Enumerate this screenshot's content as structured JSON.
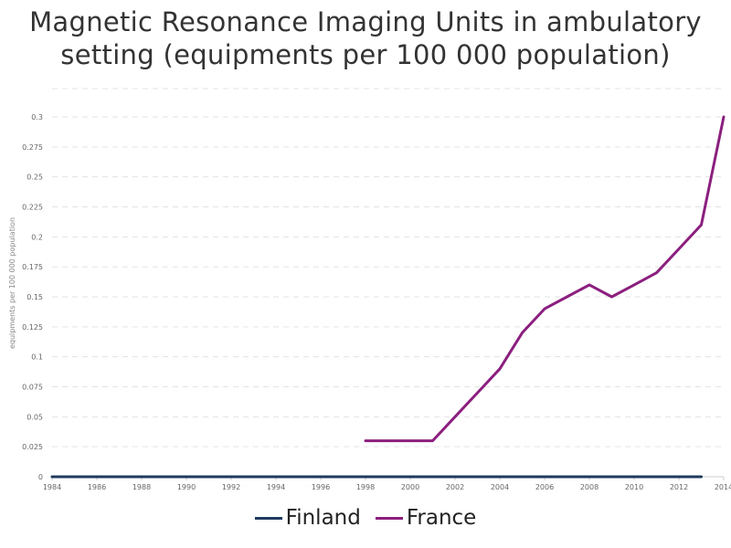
{
  "title_line1": "Magnetic Resonance Imaging Units in ambulatory",
  "title_line2": "setting (equipments per 100 000 population)",
  "chart_data": {
    "type": "line",
    "title": "Magnetic Resonance Imaging Units in ambulatory setting (equipments per 100 000 population)",
    "ylabel": "equipments per 100 000 population",
    "xlabel": "",
    "xlim": [
      1984,
      2014
    ],
    "ylim": [
      0,
      0.3
    ],
    "x_ticks": [
      1984,
      1986,
      1988,
      1990,
      1992,
      1994,
      1996,
      1998,
      2000,
      2002,
      2004,
      2006,
      2008,
      2010,
      2012,
      2014
    ],
    "y_ticks": [
      0,
      0.025,
      0.05,
      0.075,
      0.1,
      0.125,
      0.15,
      0.175,
      0.2,
      0.225,
      0.25,
      0.275,
      0.3
    ],
    "y_tick_labels": [
      "0",
      "0.025",
      "0.05",
      "0.075",
      "0.1",
      "0.125",
      "0.15",
      "0.175",
      "0.2",
      "0.225",
      "0.25",
      "0.275",
      "0.3"
    ],
    "grid": true,
    "legend_position": "bottom-center",
    "series": [
      {
        "name": "Finland",
        "color": "#1f3a5f",
        "x": [
          1984,
          1985,
          1986,
          1987,
          1988,
          1989,
          1990,
          1991,
          1992,
          1993,
          1994,
          1995,
          1996,
          1997,
          1998,
          1999,
          2000,
          2001,
          2002,
          2003,
          2004,
          2005,
          2006,
          2007,
          2008,
          2009,
          2010,
          2011,
          2012,
          2013
        ],
        "y": [
          0,
          0,
          0,
          0,
          0,
          0,
          0,
          0,
          0,
          0,
          0,
          0,
          0,
          0,
          0,
          0,
          0,
          0,
          0,
          0,
          0,
          0,
          0,
          0,
          0,
          0,
          0,
          0,
          0,
          0
        ]
      },
      {
        "name": "France",
        "color": "#8b1f7e",
        "x": [
          1998,
          1999,
          2000,
          2001,
          2002,
          2003,
          2004,
          2005,
          2006,
          2007,
          2008,
          2009,
          2010,
          2011,
          2012,
          2013,
          2014
        ],
        "y": [
          0.03,
          0.03,
          0.03,
          0.03,
          0.05,
          0.07,
          0.09,
          0.12,
          0.14,
          0.15,
          0.16,
          0.15,
          0.16,
          0.17,
          0.19,
          0.21,
          0.3
        ]
      }
    ]
  }
}
